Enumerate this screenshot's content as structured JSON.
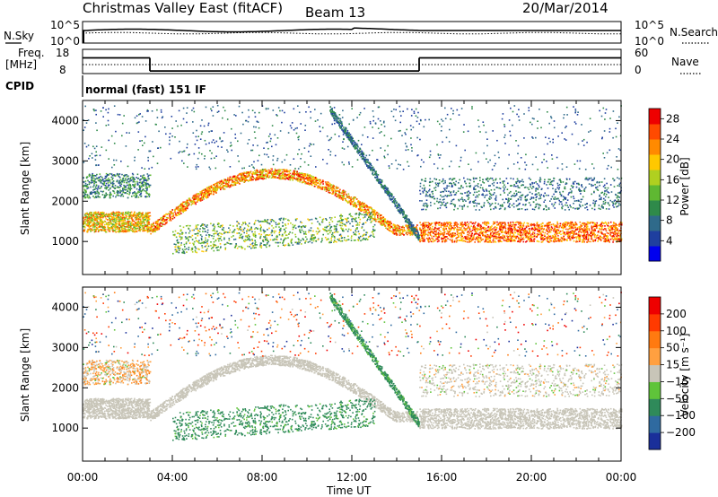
{
  "header": {
    "station": "Christmas Valley East (fitACF)",
    "beam": "Beam 13",
    "date": "20/Mar/2014"
  },
  "params": {
    "nsky_label": "N.Sky",
    "nsearch_label": "N.Search",
    "freq_label_1": "Freq.",
    "freq_label_2": "[MHz]",
    "nave_label": "Nave",
    "cpid_label": "CPID",
    "cpid_value": "normal (fast) 151 IF",
    "noise_ticks": [
      "10^5",
      "10^0"
    ],
    "freq_ticks": [
      "18",
      "8"
    ],
    "nave_ticks": [
      "60",
      "0"
    ]
  },
  "chart_data": [
    {
      "type": "heatmap",
      "title": "Power",
      "ylabel": "Slant Range [km]",
      "xlabel": "Time UT",
      "x_ticks": [
        "00:00",
        "04:00",
        "08:00",
        "12:00",
        "16:00",
        "20:00",
        "00:00"
      ],
      "xlim_hours": [
        0,
        24
      ],
      "y_ticks": [
        "1000",
        "2000",
        "3000",
        "4000"
      ],
      "ylim_km": [
        180,
        4500
      ],
      "colorbar": {
        "label": "Power [dB]",
        "ticks": [
          "4",
          "8",
          "12",
          "16",
          "20",
          "24",
          "28"
        ],
        "range": [
          0,
          30
        ],
        "colors": [
          "#0000ee",
          "#1f3f9f",
          "#2f6a8a",
          "#2f8a4a",
          "#5fb832",
          "#b0d020",
          "#ffc800",
          "#ff8a00",
          "#ff4a00",
          "#ee0000"
        ]
      }
    },
    {
      "type": "heatmap",
      "title": "Velocity",
      "ylabel": "Slant Range [km]",
      "xlabel": "Time UT",
      "x_ticks": [
        "00:00",
        "04:00",
        "08:00",
        "12:00",
        "16:00",
        "20:00",
        "00:00"
      ],
      "xlim_hours": [
        0,
        24
      ],
      "y_ticks": [
        "1000",
        "2000",
        "3000",
        "4000"
      ],
      "ylim_km": [
        180,
        4500
      ],
      "colorbar": {
        "label": "Velocity [m s⁻¹]",
        "ticks": [
          "200",
          "100",
          "50",
          "15",
          "−15",
          "−50",
          "−100",
          "−200"
        ],
        "colors": [
          "#1a2f9a",
          "#2f6aa0",
          "#2f8a5a",
          "#5fc43a",
          "#c8c5b8",
          "#ffa040",
          "#ff7a10",
          "#ff3a00",
          "#ee0000"
        ]
      }
    }
  ],
  "noise": {
    "nsky_segments": [
      [
        0.0,
        0.72
      ],
      [
        2.5,
        0.66
      ],
      [
        5.0,
        0.62
      ],
      [
        8.0,
        0.6
      ],
      [
        11.0,
        0.58
      ],
      [
        12.0,
        0.52
      ],
      [
        15.0,
        0.48
      ],
      [
        15.1,
        0.72
      ],
      [
        24.0,
        0.72
      ]
    ]
  },
  "frequency": {
    "schedule": [
      [
        0,
        3.0,
        15.3
      ],
      [
        3.0,
        15.0,
        9.2
      ],
      [
        15.0,
        24.0,
        15.3
      ]
    ]
  }
}
